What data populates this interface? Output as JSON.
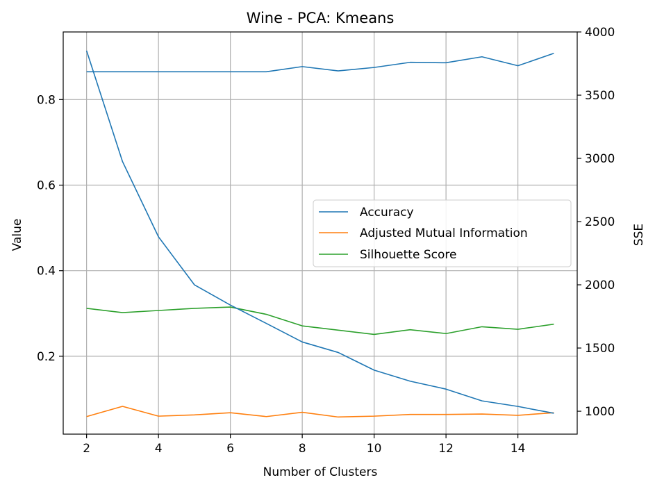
{
  "chart_data": {
    "type": "line",
    "title": "Wine - PCA: Kmeans",
    "xlabel": "Number of Clusters",
    "ylabel": "Value",
    "ylabel_right": "SSE",
    "x": [
      2,
      3,
      4,
      5,
      6,
      7,
      8,
      9,
      10,
      11,
      12,
      13,
      14,
      15
    ],
    "xticks": [
      "2",
      "4",
      "6",
      "8",
      "10",
      "12",
      "14"
    ],
    "xlim": [
      1.35,
      15.65
    ],
    "ylim": [
      0.018,
      0.958
    ],
    "yticks": [
      "0.2",
      "0.4",
      "0.6",
      "0.8"
    ],
    "ylim_right": [
      819,
      4000
    ],
    "yticks_right": [
      "1000",
      "1500",
      "2000",
      "2500",
      "3000",
      "3500",
      "4000"
    ],
    "grid": true,
    "legend_position": "center-right",
    "series": [
      {
        "name": "Accuracy",
        "axis": "left",
        "color": "#1f77b4",
        "values": [
          0.865,
          0.865,
          0.865,
          0.865,
          0.865,
          0.865,
          0.877,
          0.867,
          0.875,
          0.887,
          0.886,
          0.9,
          0.879,
          0.908
        ]
      },
      {
        "name": "Adjusted Mutual Information",
        "axis": "left",
        "color": "#ff7f0e",
        "values": [
          0.059,
          0.083,
          0.06,
          0.063,
          0.068,
          0.059,
          0.069,
          0.058,
          0.06,
          0.064,
          0.064,
          0.065,
          0.062,
          0.068
        ]
      },
      {
        "name": "Silhouette Score",
        "axis": "left",
        "color": "#2ca02c",
        "values": [
          0.312,
          0.302,
          0.307,
          0.312,
          0.315,
          0.298,
          0.271,
          0.261,
          0.251,
          0.262,
          0.253,
          0.269,
          0.263,
          0.275
        ]
      },
      {
        "name": "SSE",
        "axis": "right",
        "color": "#1f77b4",
        "legend": false,
        "values": [
          3852,
          2975,
          2380,
          2000,
          1840,
          1695,
          1548,
          1465,
          1325,
          1238,
          1175,
          1082,
          1038,
          984
        ]
      }
    ],
    "legend_entries": [
      "Accuracy",
      "Adjusted Mutual Information",
      "Silhouette Score"
    ]
  }
}
